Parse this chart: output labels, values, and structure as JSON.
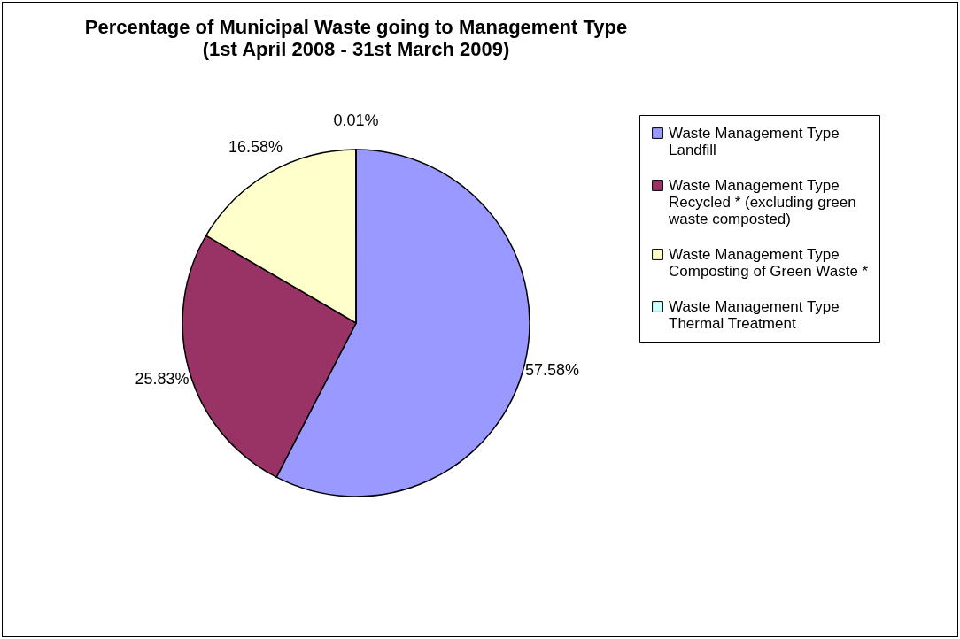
{
  "chart_data": {
    "type": "pie",
    "title": "Percentage of Municipal Waste going to Management Type",
    "subtitle": "(1st April 2008 - 31st March 2009)",
    "categories": [
      "Waste Management Type Landfill",
      "Waste Management Type Recycled * (excluding green waste composted)",
      "Waste Management Type Composting of Green Waste *",
      "Waste Management Type Thermal Treatment"
    ],
    "values": [
      57.58,
      25.83,
      16.58,
      0.01
    ],
    "colors": [
      "#9999ff",
      "#993366",
      "#ffffcc",
      "#ccffff"
    ],
    "value_labels": [
      "57.58%",
      "25.83%",
      "16.58%",
      "0.01%"
    ],
    "legend": "right"
  }
}
